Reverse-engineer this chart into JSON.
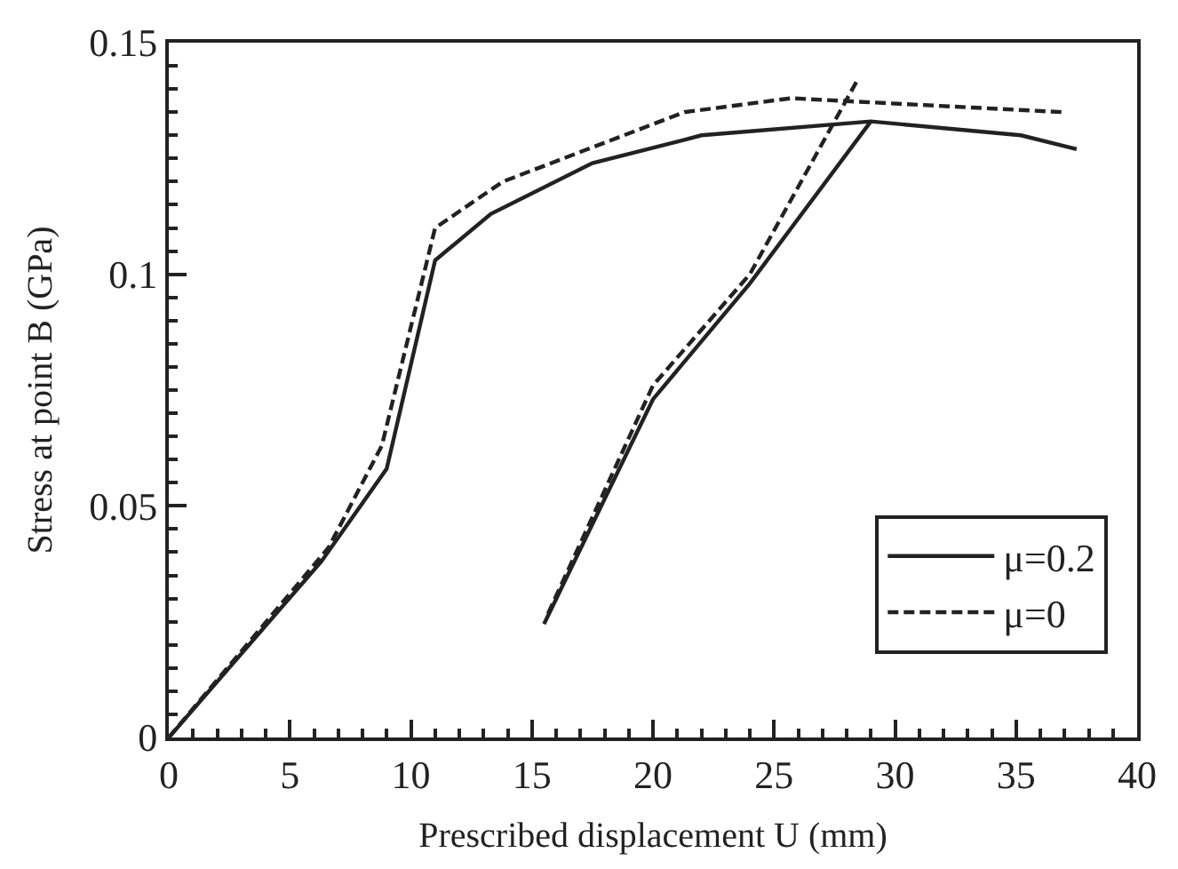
{
  "chart_data": {
    "type": "line",
    "xlabel": "Prescribed displacement U (mm)",
    "ylabel": "Stress at point B (GPa)",
    "xlim": [
      0,
      40
    ],
    "xticks": [
      0,
      5,
      10,
      15,
      20,
      25,
      30,
      35,
      40
    ],
    "ylim": [
      0,
      0.15
    ],
    "yticks": [
      0,
      0.05,
      0.1,
      0.15
    ],
    "legend": "bottom right",
    "marker": "none",
    "series": [
      {
        "name": "μ=0.2",
        "color": "#222222",
        "line_style": "solid",
        "x": [
          0,
          6.3,
          9.0,
          11.0,
          13.3,
          17.5,
          21.3,
          22.0,
          29.0,
          35.2,
          37.5
        ],
        "values": [
          0,
          0.038,
          0.058,
          0.103,
          0.113,
          0.124,
          0.129,
          0.13,
          0.133,
          0.13,
          0.127
        ]
      },
      {
        "name": "μ=0",
        "color": "#222222",
        "line_style": "dashed",
        "x": [
          0,
          6.6,
          8.8,
          11.0,
          13.8,
          21.3,
          25.7,
          36.9
        ],
        "values": [
          0,
          0.041,
          0.063,
          0.11,
          0.12,
          0.135,
          0.138,
          0.135
        ]
      },
      {
        "color": "#222222",
        "line_style": "solid",
        "x": [
          29.0,
          24,
          20,
          15.5
        ],
        "values": [
          0.133,
          0.098,
          0.073,
          0.0245
        ]
      },
      {
        "color": "#222222",
        "line_style": "dashed",
        "x": [
          28.4,
          24,
          20,
          15.6
        ],
        "values": [
          0.1415,
          0.1,
          0.076,
          0.026
        ]
      }
    ]
  }
}
